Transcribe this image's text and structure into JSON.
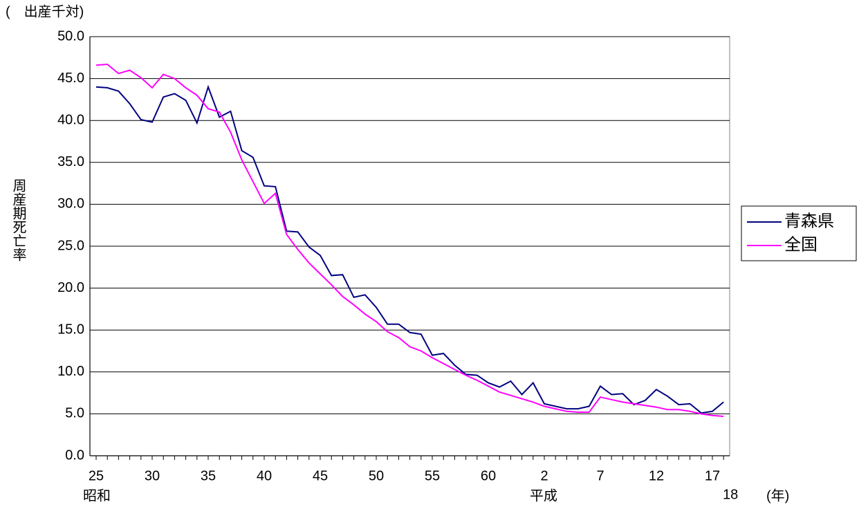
{
  "chart_data": {
    "type": "line",
    "unit_label": "(　出産千対)",
    "ylabel": "周産期死亡率",
    "xlabel": "(年)",
    "era_labels": [
      "昭和",
      "平成"
    ],
    "categories": [
      "25",
      null,
      null,
      null,
      null,
      "30",
      null,
      null,
      null,
      null,
      "35",
      null,
      null,
      null,
      null,
      "40",
      null,
      null,
      null,
      null,
      "45",
      null,
      null,
      null,
      null,
      "50",
      null,
      null,
      null,
      null,
      "55",
      null,
      null,
      null,
      null,
      "60",
      null,
      null,
      null,
      null,
      "2",
      null,
      null,
      null,
      null,
      "7",
      null,
      null,
      null,
      null,
      "12",
      null,
      null,
      null,
      null,
      "17",
      "18"
    ],
    "series": [
      {
        "name": "青森県",
        "color": "#000080",
        "values": [
          44.0,
          43.9,
          43.5,
          42.0,
          40.1,
          39.8,
          42.8,
          43.2,
          42.4,
          39.7,
          44.0,
          40.4,
          41.1,
          36.4,
          35.6,
          32.2,
          32.1,
          26.8,
          26.7,
          24.9,
          23.9,
          21.5,
          21.6,
          18.9,
          19.2,
          17.7,
          15.7,
          15.7,
          14.7,
          14.5,
          12.0,
          12.2,
          10.8,
          9.7,
          9.6,
          8.7,
          8.2,
          8.9,
          7.3,
          8.7,
          6.2,
          5.9,
          5.6,
          5.6,
          5.9,
          8.3,
          7.3,
          7.4,
          6.1,
          6.6,
          7.9,
          7.1,
          6.1,
          6.2,
          5.1,
          5.3,
          6.4
        ]
      },
      {
        "name": "全国",
        "color": "#ff00ff",
        "values": [
          46.6,
          46.7,
          45.6,
          46.0,
          45.1,
          43.9,
          45.5,
          45.0,
          43.9,
          43.0,
          41.4,
          41.0,
          38.6,
          35.3,
          32.7,
          30.1,
          31.3,
          26.4,
          24.6,
          23.0,
          21.7,
          20.4,
          19.0,
          18.0,
          16.9,
          16.0,
          14.8,
          14.1,
          13.0,
          12.5,
          11.7,
          11.0,
          10.3,
          9.6,
          9.0,
          8.3,
          7.6,
          7.2,
          6.8,
          6.4,
          5.9,
          5.6,
          5.3,
          5.2,
          5.2,
          7.0,
          6.7,
          6.4,
          6.2,
          6.0,
          5.8,
          5.5,
          5.5,
          5.3,
          5.0,
          4.8,
          4.7
        ]
      }
    ],
    "ylim": [
      0,
      50
    ],
    "yticks": [
      {
        "value": 0,
        "label": "0.0"
      },
      {
        "value": 5,
        "label": "5.0"
      },
      {
        "value": 10,
        "label": "10.0"
      },
      {
        "value": 15,
        "label": "15.0"
      },
      {
        "value": 20,
        "label": "20.0"
      },
      {
        "value": 25,
        "label": "25.0"
      },
      {
        "value": 30,
        "label": "30.0"
      },
      {
        "value": 35,
        "label": "35.0"
      },
      {
        "value": 40,
        "label": "40.0"
      },
      {
        "value": 45,
        "label": "45.0"
      },
      {
        "value": 50,
        "label": "50.0"
      }
    ],
    "grid": true,
    "legend": "right"
  }
}
